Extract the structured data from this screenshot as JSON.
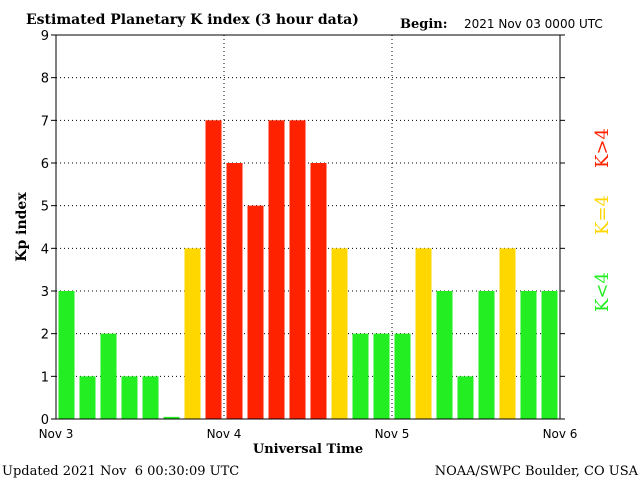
{
  "chart_data": {
    "type": "bar",
    "title": "Estimated Planetary K index (3 hour data)",
    "begin_label": "Begin:",
    "begin_value": "2021 Nov 03 0000 UTC",
    "xlabel": "Universal Time",
    "ylabel": "Kp index",
    "ylim": [
      0,
      9
    ],
    "yticks": [
      "0",
      "1",
      "2",
      "3",
      "4",
      "5",
      "6",
      "7",
      "8",
      "9"
    ],
    "xticks": [
      "Nov 3",
      "Nov 4",
      "Nov 5",
      "Nov 6"
    ],
    "values": [
      3,
      1,
      2,
      1,
      1,
      0.05,
      4,
      7,
      6,
      5,
      7,
      7,
      6,
      4,
      2,
      2,
      2,
      4,
      3,
      1,
      3,
      4,
      3,
      3
    ],
    "grid": true,
    "legend": [
      {
        "label": "K<4",
        "color": "#22ee22"
      },
      {
        "label": "K=4",
        "color": "#ffd700"
      },
      {
        "label": "K>4",
        "color": "#ff2200"
      }
    ],
    "footer_left": "Updated 2021 Nov  6 00:30:09 UTC",
    "footer_right": "NOAA/SWPC Boulder, CO USA"
  }
}
